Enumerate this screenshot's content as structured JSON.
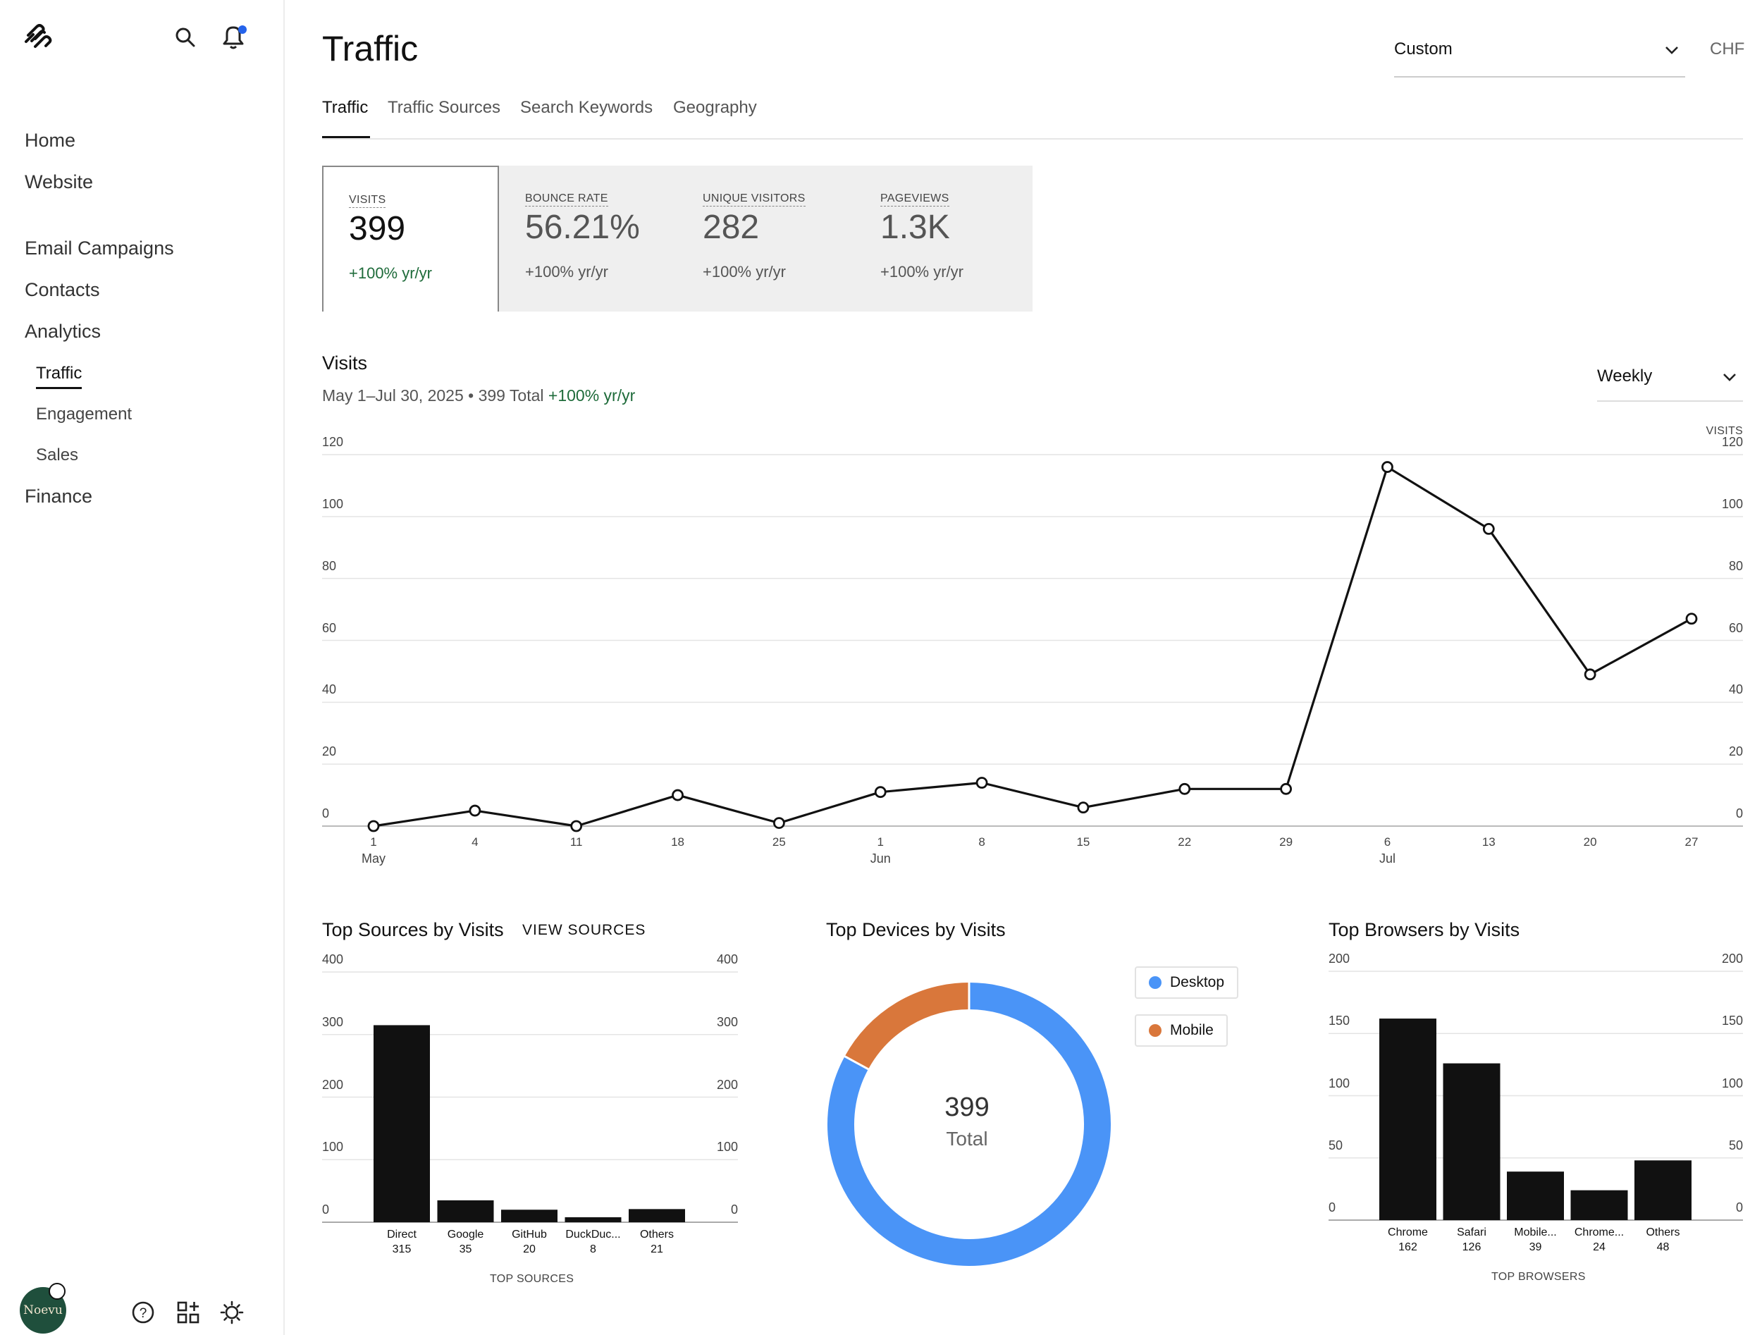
{
  "sidebar": {
    "nav": [
      "Home",
      "Website",
      "Email Campaigns",
      "Contacts",
      "Analytics"
    ],
    "analytics_sub": [
      "Traffic",
      "Engagement",
      "Sales"
    ],
    "finance": "Finance",
    "avatar_text": "Noevu"
  },
  "header": {
    "title": "Traffic",
    "date_range": "Custom",
    "currency": "CHF",
    "tabs": [
      "Traffic",
      "Traffic Sources",
      "Search Keywords",
      "Geography"
    ]
  },
  "metrics": [
    {
      "label": "VISITS",
      "value": "399",
      "change": "+100% yr/yr"
    },
    {
      "label": "BOUNCE RATE",
      "value": "56.21%",
      "change": "+100% yr/yr"
    },
    {
      "label": "UNIQUE VISITORS",
      "value": "282",
      "change": "+100% yr/yr"
    },
    {
      "label": "PAGEVIEWS",
      "value": "1.3K",
      "change": "+100% yr/yr"
    }
  ],
  "visits": {
    "title": "Visits",
    "subtitle": "May 1–Jul 30, 2025 • 399 Total",
    "change": "+100% yr/yr",
    "interval": "Weekly",
    "axis_caption": "VISITS"
  },
  "sources": {
    "title": "Top Sources by Visits",
    "link": "VIEW SOURCES",
    "caption": "TOP SOURCES"
  },
  "devices": {
    "title": "Top Devices by Visits",
    "total": "399",
    "total_label": "Total",
    "legend": [
      "Desktop",
      "Mobile"
    ]
  },
  "browsers": {
    "title": "Top Browsers by Visits",
    "caption": "TOP BROWSERS"
  },
  "colors": {
    "positive": "#1e6b3a",
    "desktop": "#4a94f7",
    "mobile": "#d9773b",
    "bar": "#111111",
    "notification": "#2563eb"
  },
  "chart_data": [
    {
      "type": "line",
      "title": "Visits",
      "x": [
        "May 1",
        "May 4",
        "May 11",
        "May 18",
        "May 25",
        "Jun 1",
        "Jun 8",
        "Jun 15",
        "Jun 22",
        "Jun 29",
        "Jul 6",
        "Jul 13",
        "Jul 20",
        "Jul 27"
      ],
      "x_tick_labels": [
        "1",
        "4",
        "11",
        "18",
        "25",
        "1",
        "8",
        "15",
        "22",
        "29",
        "6",
        "13",
        "20",
        "27"
      ],
      "month_labels": [
        {
          "index": 0,
          "label": "May"
        },
        {
          "index": 5,
          "label": "Jun"
        },
        {
          "index": 10,
          "label": "Jul"
        }
      ],
      "values": [
        0,
        5,
        0,
        10,
        1,
        11,
        14,
        6,
        12,
        12,
        116,
        96,
        49,
        67
      ],
      "ylim": [
        0,
        120
      ],
      "yticks": [
        0,
        20,
        40,
        60,
        80,
        100,
        120
      ],
      "ylabel": "VISITS"
    },
    {
      "type": "bar",
      "title": "Top Sources by Visits",
      "categories": [
        "Direct",
        "Google",
        "GitHub",
        "DuckDuc...",
        "Others"
      ],
      "values": [
        315,
        35,
        20,
        8,
        21
      ],
      "ylim": [
        0,
        400
      ],
      "yticks": [
        0,
        100,
        200,
        300,
        400
      ],
      "xlabel": "TOP SOURCES"
    },
    {
      "type": "pie",
      "title": "Top Devices by Visits",
      "categories": [
        "Desktop",
        "Mobile"
      ],
      "values": [
        331,
        68
      ],
      "total": 399
    },
    {
      "type": "bar",
      "title": "Top Browsers by Visits",
      "categories": [
        "Chrome",
        "Safari",
        "Mobile...",
        "Chrome...",
        "Others"
      ],
      "values": [
        162,
        126,
        39,
        24,
        48
      ],
      "ylim": [
        0,
        200
      ],
      "yticks": [
        0,
        50,
        100,
        150,
        200
      ],
      "xlabel": "TOP BROWSERS"
    }
  ]
}
